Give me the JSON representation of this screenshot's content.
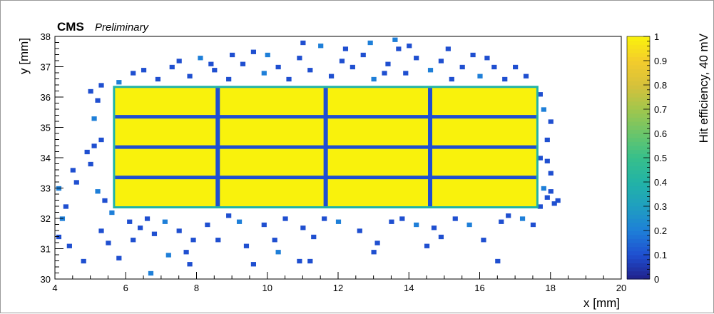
{
  "chart_data": {
    "type": "heatmap",
    "experiment_label": "CMS",
    "status_label": "Preliminary",
    "xlabel": "x [mm]",
    "ylabel": "y [mm]",
    "zlabel": "Hit efficiency, 40 mV",
    "xlim": [
      4,
      20
    ],
    "ylim": [
      30,
      38
    ],
    "zlim": [
      0,
      1
    ],
    "x_ticks": [
      "4",
      "6",
      "8",
      "10",
      "12",
      "14",
      "16",
      "18",
      "20"
    ],
    "y_ticks": [
      "30",
      "31",
      "32",
      "33",
      "34",
      "35",
      "36",
      "37",
      "38"
    ],
    "z_ticks": [
      "0",
      "0.1",
      "0.2",
      "0.3",
      "0.4",
      "0.5",
      "0.6",
      "0.7",
      "0.8",
      "0.9",
      "1"
    ],
    "sensor_region": {
      "x": [
        5.7,
        17.6
      ],
      "y": [
        32.4,
        36.3
      ],
      "efficiency": 1.0
    },
    "column_gaps_x": [
      8.6,
      11.65,
      14.6
    ],
    "row_gaps_y": [
      33.35,
      34.35,
      35.35
    ],
    "gap_efficiency": 0.05,
    "colormap": [
      "#20208a",
      "#1f4fd0",
      "#1e7fd8",
      "#1f9fc0",
      "#22b3a6",
      "#37bf8b",
      "#6ac56a",
      "#a1c64c",
      "#d7c13a",
      "#f3cc2c",
      "#f9f20c"
    ],
    "scatter_points": [
      [
        4.1,
        33.0
      ],
      [
        4.3,
        32.4
      ],
      [
        4.4,
        31.1
      ],
      [
        4.5,
        33.6
      ],
      [
        4.1,
        31.4
      ],
      [
        4.2,
        32.0
      ],
      [
        4.6,
        33.2
      ],
      [
        4.9,
        34.2
      ],
      [
        4.8,
        30.6
      ],
      [
        5.0,
        36.2
      ],
      [
        5.1,
        35.3
      ],
      [
        5.1,
        34.4
      ],
      [
        5.2,
        35.9
      ],
      [
        5.3,
        34.6
      ],
      [
        5.0,
        33.8
      ],
      [
        5.2,
        32.9
      ],
      [
        5.4,
        32.6
      ],
      [
        5.3,
        31.6
      ],
      [
        5.5,
        31.2
      ],
      [
        5.3,
        36.4
      ],
      [
        5.6,
        32.2
      ],
      [
        6.1,
        31.9
      ],
      [
        6.4,
        31.7
      ],
      [
        6.6,
        32.0
      ],
      [
        6.8,
        31.5
      ],
      [
        7.1,
        31.9
      ],
      [
        7.5,
        31.6
      ],
      [
        7.7,
        30.9
      ],
      [
        7.9,
        31.3
      ],
      [
        5.8,
        30.7
      ],
      [
        6.7,
        30.2
      ],
      [
        7.8,
        30.5
      ],
      [
        8.3,
        31.8
      ],
      [
        8.6,
        31.3
      ],
      [
        8.9,
        32.1
      ],
      [
        9.2,
        31.9
      ],
      [
        9.4,
        31.1
      ],
      [
        9.9,
        31.8
      ],
      [
        10.2,
        31.3
      ],
      [
        10.5,
        32.0
      ],
      [
        10.3,
        30.9
      ],
      [
        11.0,
        31.7
      ],
      [
        11.3,
        31.4
      ],
      [
        11.6,
        32.0
      ],
      [
        11.2,
        30.6
      ],
      [
        12.0,
        31.9
      ],
      [
        12.6,
        31.6
      ],
      [
        13.1,
        31.2
      ],
      [
        13.5,
        31.9
      ],
      [
        13.8,
        32.0
      ],
      [
        14.2,
        31.8
      ],
      [
        14.5,
        31.1
      ],
      [
        14.7,
        31.7
      ],
      [
        14.9,
        31.4
      ],
      [
        15.3,
        32.0
      ],
      [
        15.7,
        31.8
      ],
      [
        16.1,
        31.3
      ],
      [
        16.6,
        31.9
      ],
      [
        16.8,
        32.1
      ],
      [
        16.5,
        30.6
      ],
      [
        17.2,
        32.0
      ],
      [
        17.5,
        31.8
      ],
      [
        13.0,
        30.9
      ],
      [
        10.9,
        30.6
      ],
      [
        9.6,
        30.5
      ],
      [
        7.2,
        30.8
      ],
      [
        6.2,
        31.3
      ],
      [
        17.7,
        32.4
      ],
      [
        17.9,
        32.7
      ],
      [
        18.1,
        32.5
      ],
      [
        17.8,
        33.0
      ],
      [
        18.0,
        33.5
      ],
      [
        17.7,
        34.0
      ],
      [
        17.9,
        34.6
      ],
      [
        18.0,
        35.2
      ],
      [
        17.8,
        35.6
      ],
      [
        17.7,
        36.1
      ],
      [
        18.0,
        32.9
      ],
      [
        18.2,
        32.6
      ],
      [
        17.9,
        33.9
      ],
      [
        5.8,
        36.5
      ],
      [
        6.2,
        36.8
      ],
      [
        6.9,
        36.6
      ],
      [
        7.3,
        37.0
      ],
      [
        7.8,
        36.7
      ],
      [
        8.1,
        37.3
      ],
      [
        8.5,
        36.9
      ],
      [
        8.9,
        36.6
      ],
      [
        9.3,
        37.1
      ],
      [
        9.6,
        37.5
      ],
      [
        9.9,
        36.8
      ],
      [
        10.3,
        37.0
      ],
      [
        10.6,
        36.6
      ],
      [
        10.9,
        37.3
      ],
      [
        11.2,
        36.9
      ],
      [
        11.5,
        37.7
      ],
      [
        11.8,
        36.7
      ],
      [
        12.1,
        37.2
      ],
      [
        12.4,
        37.0
      ],
      [
        12.7,
        37.4
      ],
      [
        13.0,
        36.6
      ],
      [
        13.4,
        37.1
      ],
      [
        13.7,
        37.6
      ],
      [
        13.9,
        36.8
      ],
      [
        14.2,
        37.3
      ],
      [
        14.6,
        36.9
      ],
      [
        14.9,
        37.2
      ],
      [
        15.2,
        36.6
      ],
      [
        15.5,
        37.0
      ],
      [
        15.8,
        37.4
      ],
      [
        16.0,
        36.7
      ],
      [
        16.4,
        37.0
      ],
      [
        16.7,
        36.6
      ],
      [
        17.0,
        37.0
      ],
      [
        17.3,
        36.7
      ],
      [
        13.6,
        37.9
      ],
      [
        12.2,
        37.6
      ],
      [
        9.0,
        37.4
      ],
      [
        7.5,
        37.2
      ],
      [
        6.5,
        36.9
      ],
      [
        10.0,
        37.4
      ],
      [
        11.0,
        37.8
      ],
      [
        14.0,
        37.7
      ],
      [
        15.1,
        37.6
      ],
      [
        16.2,
        37.3
      ],
      [
        12.9,
        37.8
      ],
      [
        8.4,
        37.1
      ],
      [
        13.3,
        36.8
      ]
    ]
  }
}
